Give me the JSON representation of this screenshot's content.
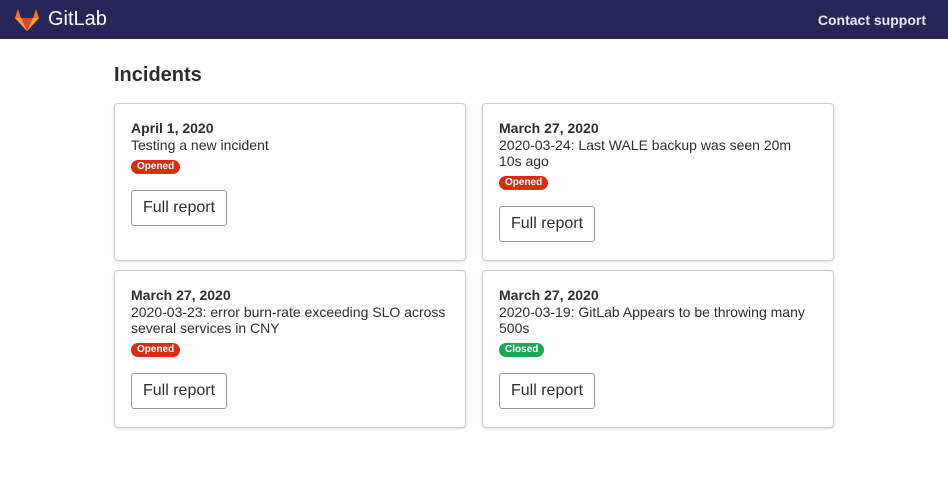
{
  "header": {
    "brand": "GitLab",
    "support_link": "Contact support"
  },
  "page_title": "Incidents",
  "colors": {
    "opened": "#dd2b0e",
    "closed": "#1aaa55",
    "topbar": "#262659"
  },
  "incidents": [
    {
      "date": "April 1, 2020",
      "title": "Testing a new incident",
      "status": "Opened",
      "button": "Full report"
    },
    {
      "date": "March 27, 2020",
      "title": "2020-03-24: Last WALE backup was seen 20m 10s ago",
      "status": "Opened",
      "button": "Full report"
    },
    {
      "date": "March 27, 2020",
      "title": "2020-03-23: error burn-rate exceeding SLO across several services in CNY",
      "status": "Opened",
      "button": "Full report"
    },
    {
      "date": "March 27, 2020",
      "title": "2020-03-19: GitLab Appears to be throwing many 500s",
      "status": "Closed",
      "button": "Full report"
    }
  ]
}
